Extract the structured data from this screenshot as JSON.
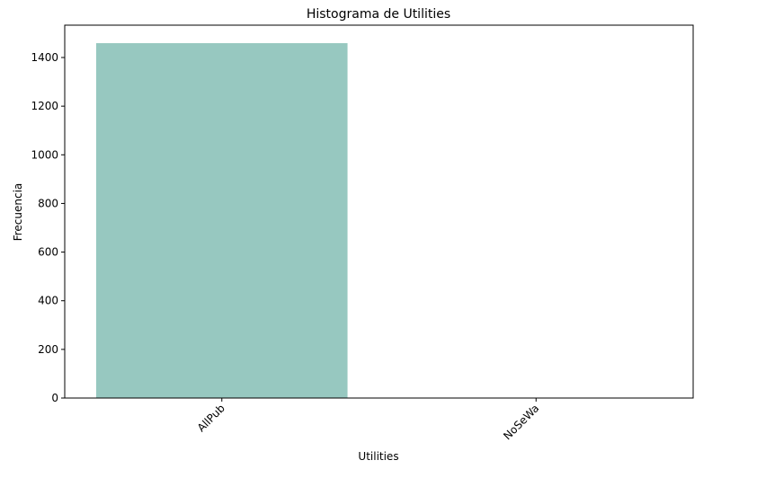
{
  "chart_data": {
    "type": "bar",
    "title": "Histograma de Utilities",
    "xlabel": "Utilities",
    "ylabel": "Frecuencia",
    "categories": [
      "AllPub",
      "NoSeWa"
    ],
    "values": [
      1459,
      1
    ],
    "ylim": [
      0,
      1533
    ],
    "yticks": [
      0,
      200,
      400,
      600,
      800,
      1000,
      1200,
      1400
    ],
    "bar_color": "#97c8c0",
    "grid": false,
    "legend": "none"
  }
}
